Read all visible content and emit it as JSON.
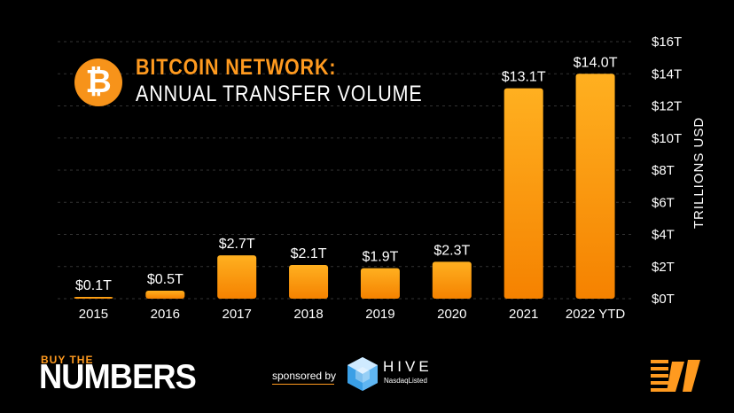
{
  "header": {
    "title_line1": "BITCOIN NETWORK:",
    "title_line2": "ANNUAL TRANSFER VOLUME",
    "logo_symbol": "₿"
  },
  "colors": {
    "background": "#000000",
    "accent": "#ff9a1f",
    "bar_top": "#ffb020",
    "bar_bottom": "#f58200",
    "gridline": "#333333",
    "text": "#ffffff"
  },
  "chart_data": {
    "type": "bar",
    "categories": [
      "2015",
      "2016",
      "2017",
      "2018",
      "2019",
      "2020",
      "2021",
      "2022 YTD"
    ],
    "values": [
      0.1,
      0.5,
      2.7,
      2.1,
      1.9,
      2.3,
      13.1,
      14.0
    ],
    "data_labels": [
      "$0.1T",
      "$0.5T",
      "$2.7T",
      "$2.1T",
      "$1.9T",
      "$2.3T",
      "$13.1T",
      "$14.0T"
    ],
    "title": "BITCOIN NETWORK: ANNUAL TRANSFER VOLUME",
    "xlabel": "",
    "ylabel": "TRILLIONS USD",
    "ylim": [
      0,
      16
    ],
    "yticks": [
      0,
      2,
      4,
      6,
      8,
      10,
      12,
      14,
      16
    ],
    "ytick_labels": [
      "$0T",
      "$2T",
      "$4T",
      "$6T",
      "$8T",
      "$10T",
      "$12T",
      "$14T",
      "$16T"
    ],
    "y_axis_side": "right",
    "grid": true
  },
  "footer": {
    "brand_top": "BUY THE",
    "brand_main": "NUMBERS",
    "sponsored_text": "sponsored by",
    "sponsor_name": "HIVE",
    "sponsor_sub": "NasdaqListed"
  }
}
